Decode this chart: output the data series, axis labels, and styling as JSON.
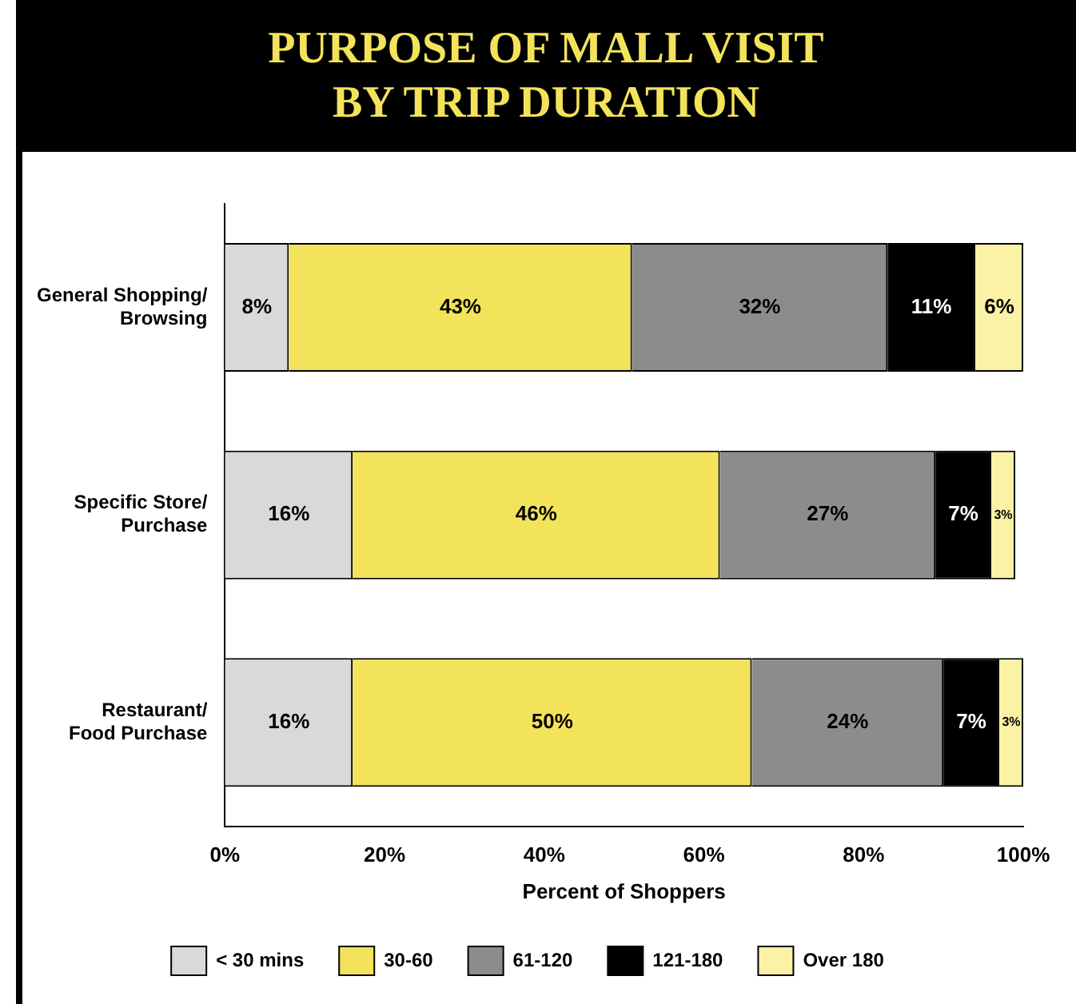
{
  "chart_data": {
    "type": "bar",
    "title": "PURPOSE OF MALL VISIT\nBY TRIP DURATION",
    "orientation": "horizontal",
    "stacked": true,
    "xlabel": "Percent of Shoppers",
    "categories": [
      "General Shopping/\nBrowsing",
      "Specific Store/\nPurchase",
      "Restaurant/\nFood Purchase"
    ],
    "series": [
      {
        "name": "< 30 mins",
        "color": "#d9d9d9",
        "values": [
          8,
          16,
          16
        ],
        "value_labels": [
          "8%",
          "16%",
          "16%"
        ]
      },
      {
        "name": "30-60",
        "color": "#f3e35a",
        "values": [
          43,
          46,
          50
        ],
        "value_labels": [
          "43%",
          "46%",
          "50%"
        ]
      },
      {
        "name": "61-120",
        "color": "#8c8c8c",
        "values": [
          32,
          27,
          24
        ],
        "value_labels": [
          "32%",
          "27%",
          "24%"
        ]
      },
      {
        "name": "121-180",
        "color": "#000000",
        "values": [
          11,
          7,
          7
        ],
        "value_labels": [
          "11%",
          "7%",
          "7%"
        ]
      },
      {
        "name": "Over 180",
        "color": "#fbf2a6",
        "values": [
          6,
          3,
          3
        ],
        "value_labels": [
          "6%",
          "3%",
          "3%"
        ]
      }
    ],
    "xlim": [
      0,
      100
    ],
    "xticks": [
      {
        "value": 0,
        "label": "0%"
      },
      {
        "value": 20,
        "label": "20%"
      },
      {
        "value": 40,
        "label": "40%"
      },
      {
        "value": 60,
        "label": "60%"
      },
      {
        "value": 80,
        "label": "80%"
      },
      {
        "value": 100,
        "label": "100%"
      }
    ],
    "grid": false,
    "legend": "bottom"
  }
}
